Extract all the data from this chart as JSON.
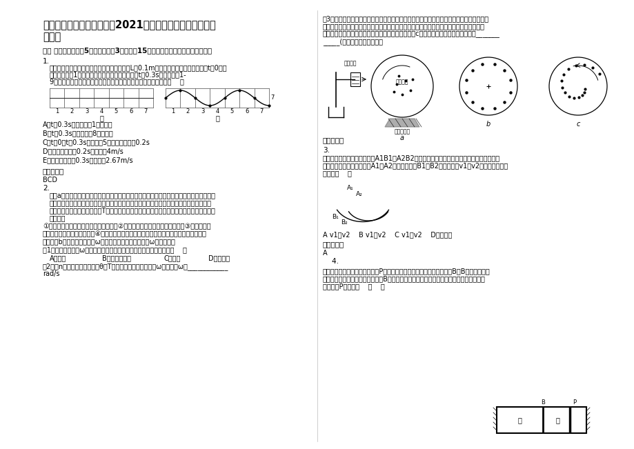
{
  "title_line1": "湖北省襄阳市第三十四中学2021年高三物理下学期期末试卷",
  "title_line2": "含解析",
  "section1": "一、 选择题：本题共5小题，每小题3分，共计15分。每小题只有一个选项符合题意",
  "q1_header": "1.",
  "q1_text_line1": "一列简谐横波向右传播，在其传播路径上每隔L＝0.1m选取一个质点，如图甲所示，t＝0时刻",
  "q1_text_line2": "波恰传到质点1，并立即开始向上振动，经过时间t＝0.3s，所选取的1-",
  "q1_text_line3": "9号质点间第一次出现如图乙所示的波形，则下列判断正确的是：（    ）",
  "q1_label_jia": "甲",
  "q1_label_yi": "乙",
  "q1_A": "A．t＝0.3s时刻，质点1向上运动",
  "q1_B": "B．t＝0.3s时刻，质点8向下运动",
  "q1_C": "C．t＝0至t＝0.3s内，质点5运动的时间只有0.2s",
  "q1_D": "D．该波的周期为0.2s，波速为4m/s",
  "q1_E": "E．该波的周期为0.3s，波速为2.67m/s",
  "ref_ans": "参考答案：",
  "q1_ans": "BCD",
  "q2_header": "2.",
  "q2_t1": "如图a所示为测量电动机匀速转动时角速度的实验装置，半径不大的圆形卡纸固定在电动机转",
  "q2_t2": "轴上，在电动机的带动下匀速转动，在圆形卡纸的一侧垂直安装一个改装了的电火花计时器",
  "q2_t3": "，已知它可以每隔相同的时间T，在圆形卡纸上留下一个圆形跑点。某同学按下列实验步骤进",
  "q2_t4": "行实验：",
  "q2_s1": "①使电火花计时器与圆形卡保持良好接触②启动电动机，使圆形卡纸转动起来③接通电火花",
  "q2_s2": "计时器的电源，使其工作起来④关闭电动机，拆除电火花计时器，研究卡纸上留下的一段痕",
  "q2_s3": "迹，如图b所示。写出角速度ω的表达式，代入数据，得出ω的测量值。",
  "q2_q1": "（1）要得到角速度ω的测量值，还缺少一种必要的测量工具，它是：（    ）",
  "q2_A": "A．秒表",
  "q2_B": "B．毫米刻度尺",
  "q2_C": "C．圆规",
  "q2_D": "D．量角器",
  "q2_q2_1": "（2）若n个点对应的圆心角是θ，T为打点的时间间隔，写出ω的表达式ω＝____________",
  "q2_q2_2": "rad/s",
  "q3_h1": "（3）为了避免卡纸连续转动的过程中出现打点重叠，在电火花计时器与盘面保持良好接触的",
  "q3_h2": "同时，可以缓慢地将电火花计时器沿圆形卡纸半径方向向卡纸中心移动，则卡纸上打下的点",
  "q3_h3": "的分布曲线不是一个圆，而是类似一种螺旋线，如图c所示，这对测量结果有影响吗？_______",
  "q3_h4": "_____(填有影响或没有影响）",
  "q3_ref": "参考答案：",
  "q3_num": "3.",
  "q3_t1": "如图所示，固定的两弧形轨道A1B1和A2B2的长度和高度都相同，滑块与他们之间的动摩擦",
  "q3_t2": "因数也相同。当滑块分别从A1和A2由静止起滑到B1、B2时的速度为v1和v2，则两速度大小",
  "q3_t3": "关系为（    ）",
  "q3_opts": "A v1＞v2    B v1＜v2    C v1＝v2    D无法判断",
  "q3_ref_ans": "参考答案：",
  "q3_ans": "A",
  "q4_header": "    4.",
  "q4_t1": "如图所示，固定容器及可动活塞P都是绝热的，中间有一导热的固定隔板B，B的两边分别盛",
  "q4_t2": "有气体甲和乙。现将活塞缓慢地向B移动一段距离，已知气体的温度随内能的增加而升高，",
  "q4_t3": "则在移动P的过程中    （    ）",
  "label_dianhuahuaqi": "电火花器",
  "label_yuanxingkazhi": "圆形卡纸",
  "label_diandongji": "电动机底座",
  "label_a": "a",
  "label_b": "b",
  "label_c": "c",
  "bg_color": "#ffffff"
}
